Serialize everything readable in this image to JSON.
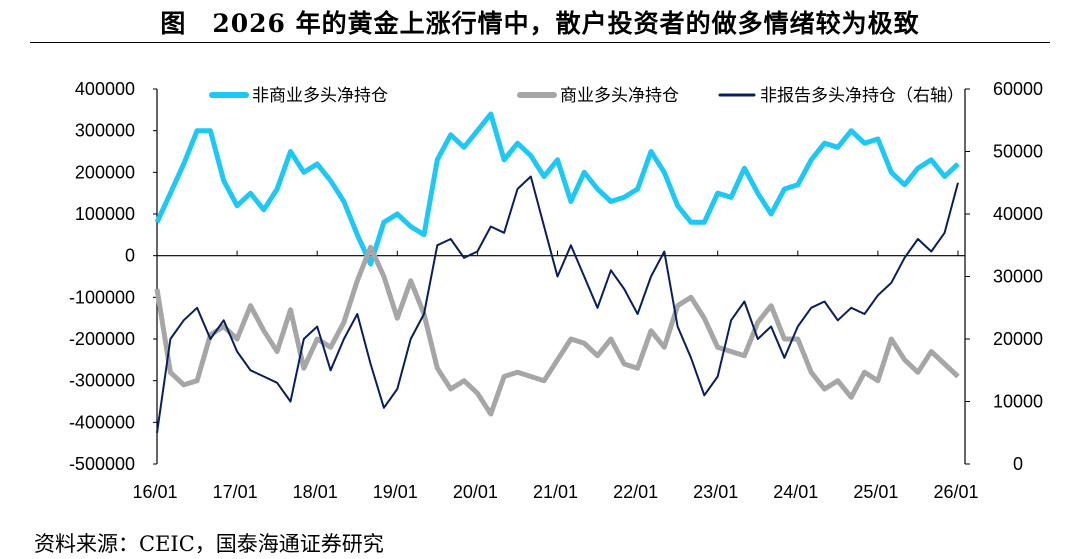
{
  "title": "图　2026 年的黄金上涨行情中，散户投资者的做多情绪较为极致",
  "source": "资料来源：CEIC，国泰海通证券研究",
  "chart_data": {
    "type": "line",
    "title": "",
    "xlabel": "",
    "ylabel": "",
    "x_ticks": [
      "16/01",
      "17/01",
      "18/01",
      "19/01",
      "20/01",
      "21/01",
      "22/01",
      "23/01",
      "24/01",
      "25/01",
      "26/01"
    ],
    "y_left": {
      "min": -500000,
      "max": 400000,
      "ticks": [
        "400000",
        "300000",
        "200000",
        "100000",
        "0",
        "-100000",
        "-200000",
        "-300000",
        "-400000",
        "-500000"
      ]
    },
    "y_right": {
      "min": 0,
      "max": 60000,
      "ticks": [
        "60000",
        "50000",
        "40000",
        "30000",
        "20000",
        "10000",
        "0"
      ]
    },
    "legend_position": "top",
    "grid": false,
    "x": [
      "2016-01",
      "2016-03",
      "2016-05",
      "2016-07",
      "2016-09",
      "2016-11",
      "2017-01",
      "2017-03",
      "2017-05",
      "2017-07",
      "2017-09",
      "2017-11",
      "2018-01",
      "2018-03",
      "2018-05",
      "2018-07",
      "2018-09",
      "2018-11",
      "2019-01",
      "2019-03",
      "2019-05",
      "2019-07",
      "2019-09",
      "2019-11",
      "2020-01",
      "2020-03",
      "2020-05",
      "2020-07",
      "2020-09",
      "2020-11",
      "2021-01",
      "2021-03",
      "2021-05",
      "2021-07",
      "2021-09",
      "2021-11",
      "2022-01",
      "2022-03",
      "2022-05",
      "2022-07",
      "2022-09",
      "2022-11",
      "2023-01",
      "2023-03",
      "2023-05",
      "2023-07",
      "2023-09",
      "2023-11",
      "2024-01",
      "2024-03",
      "2024-05",
      "2024-07",
      "2024-09",
      "2024-11",
      "2025-01",
      "2025-03",
      "2025-05",
      "2025-07",
      "2025-09",
      "2025-11",
      "2026-01"
    ],
    "series": [
      {
        "name": "非商业多头净持仓",
        "axis": "left",
        "color": "#1EC8F5",
        "values": [
          80000,
          150000,
          220000,
          300000,
          300000,
          180000,
          120000,
          150000,
          110000,
          160000,
          250000,
          200000,
          220000,
          180000,
          130000,
          50000,
          -20000,
          80000,
          100000,
          70000,
          50000,
          230000,
          290000,
          260000,
          300000,
          340000,
          230000,
          270000,
          240000,
          190000,
          230000,
          130000,
          200000,
          160000,
          130000,
          140000,
          160000,
          250000,
          200000,
          120000,
          80000,
          80000,
          150000,
          140000,
          210000,
          150000,
          100000,
          160000,
          170000,
          230000,
          270000,
          260000,
          300000,
          270000,
          280000,
          200000,
          170000,
          210000,
          230000,
          190000,
          220000
        ]
      },
      {
        "name": "商业多头净持仓",
        "axis": "left",
        "color": "#A6A6A6",
        "values": [
          -80000,
          -280000,
          -310000,
          -300000,
          -190000,
          -170000,
          -200000,
          -120000,
          -180000,
          -230000,
          -130000,
          -270000,
          -200000,
          -220000,
          -160000,
          -60000,
          20000,
          -50000,
          -150000,
          -60000,
          -140000,
          -270000,
          -320000,
          -300000,
          -330000,
          -380000,
          -290000,
          -280000,
          -290000,
          -300000,
          -250000,
          -200000,
          -210000,
          -240000,
          -200000,
          -260000,
          -270000,
          -180000,
          -220000,
          -120000,
          -100000,
          -150000,
          -220000,
          -230000,
          -240000,
          -160000,
          -120000,
          -200000,
          -200000,
          -280000,
          -320000,
          -300000,
          -340000,
          -280000,
          -300000,
          -200000,
          -250000,
          -280000,
          -230000,
          -260000,
          -290000
        ]
      },
      {
        "name": "非报告多头净持仓（右轴）",
        "axis": "right",
        "color": "#0A1E5E",
        "values": [
          5000,
          20000,
          23000,
          25000,
          20000,
          23000,
          18000,
          15000,
          14000,
          13000,
          10000,
          20000,
          22000,
          15000,
          20000,
          24000,
          16000,
          9000,
          12000,
          20000,
          24000,
          35000,
          36000,
          33000,
          34000,
          38000,
          37000,
          44000,
          46000,
          38000,
          30000,
          35000,
          30000,
          25000,
          31000,
          28000,
          24000,
          30000,
          34000,
          22000,
          17000,
          11000,
          14000,
          23000,
          26000,
          20000,
          22000,
          17000,
          22000,
          25000,
          26000,
          23000,
          25000,
          24000,
          27000,
          29000,
          33000,
          36000,
          34000,
          37000,
          45000
        ]
      }
    ]
  }
}
